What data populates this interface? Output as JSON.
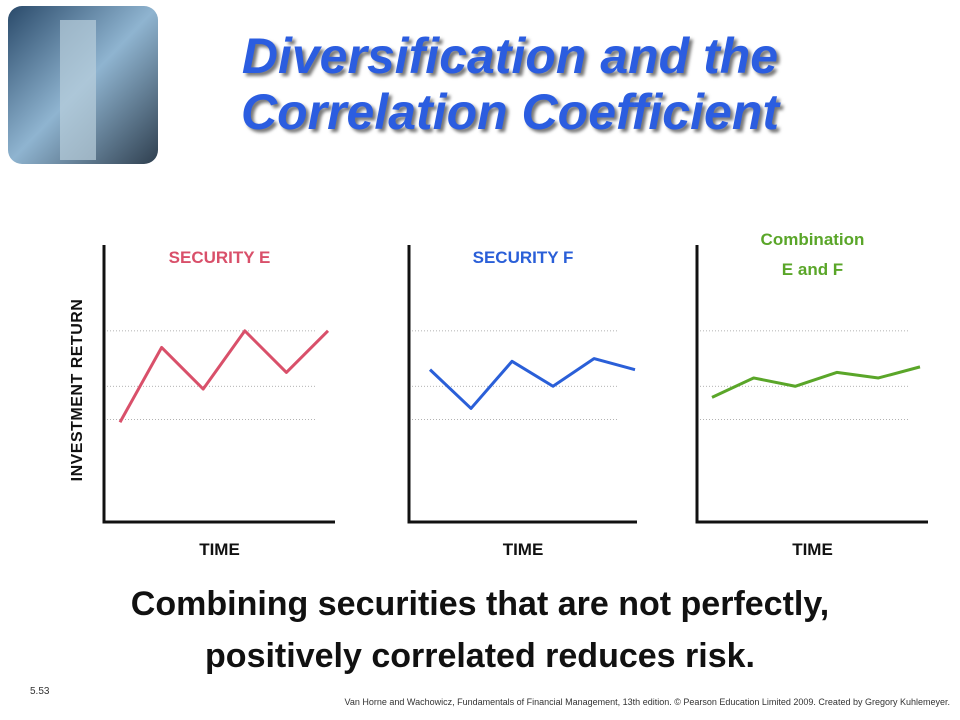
{
  "slide_title": "Diversification and the\nCorrelation Coefficient",
  "chart_data": [
    {
      "type": "line",
      "title": "SECURITY  E",
      "color": "#d9506a",
      "xlabel": "TIME",
      "ylabel": "INVESTMENT RETURN",
      "categories": [
        null,
        null,
        null,
        null,
        null,
        null
      ],
      "values": [
        36,
        63,
        48,
        69,
        54,
        69
      ],
      "ylim": [
        0,
        100
      ],
      "yticks": [
        37,
        49,
        69
      ],
      "grid": true
    },
    {
      "type": "line",
      "title": "SECURITY  F",
      "color": "#2a5fd8",
      "xlabel": "TIME",
      "categories": [
        null,
        null,
        null,
        null,
        null,
        null
      ],
      "values": [
        55,
        41,
        58,
        49,
        59,
        55
      ],
      "ylim": [
        0,
        100
      ],
      "yticks": [
        37,
        49,
        69
      ],
      "grid": true
    },
    {
      "type": "line",
      "title": "Combination\nE and F",
      "color": "#5aa629",
      "xlabel": "TIME",
      "categories": [
        null,
        null,
        null,
        null,
        null,
        null
      ],
      "values": [
        45,
        52,
        49,
        54,
        52,
        56
      ],
      "ylim": [
        0,
        100
      ],
      "yticks": [
        37,
        49,
        69
      ],
      "grid": true
    }
  ],
  "caption": "Combining securities that are not perfectly,\npositively correlated reduces risk.",
  "slide_number": "5.53",
  "footer": "Van Horne and Wachowicz, Fundamentals of Financial Management, 13th edition. © Pearson Education Limited 2009. Created by Gregory Kuhlemeyer."
}
